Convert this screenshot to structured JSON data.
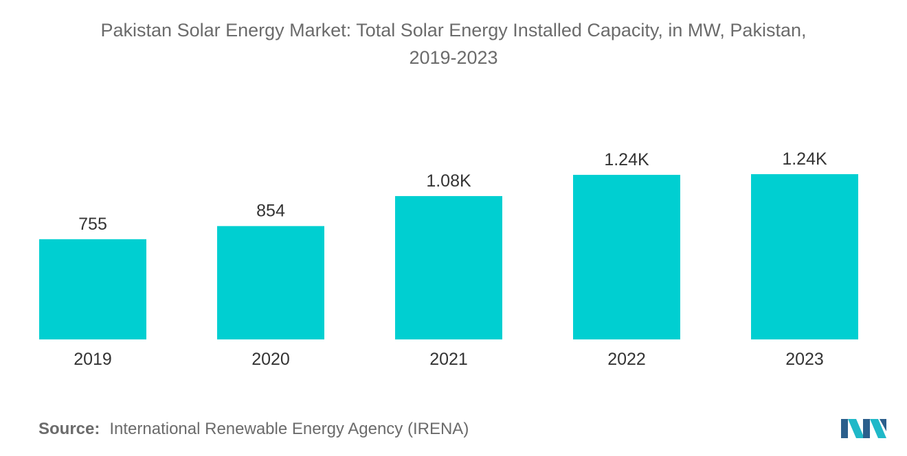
{
  "chart_data": {
    "type": "bar",
    "title_lines": [
      "Pakistan Solar Energy Market: Total Solar Energy Installed Capacity, in MW, Pakistan,",
      "2019-2023"
    ],
    "categories": [
      "2019",
      "2020",
      "2021",
      "2022",
      "2023"
    ],
    "values": [
      755,
      854,
      1080,
      1240,
      1245
    ],
    "data_labels": [
      "755",
      "854",
      "1.08K",
      "1.24K",
      "1.24K"
    ],
    "xlabel": "",
    "ylabel": "",
    "ylim": [
      0,
      1245
    ],
    "grid": false,
    "legend": "none",
    "bar_color": "#00cfd1"
  },
  "source": {
    "label": "Source:",
    "text": "International Renewable Energy Agency (IRENA)"
  },
  "colors": {
    "title": "#6b6b6b",
    "labels": "#333333",
    "logo_dark": "#2b5f8c",
    "logo_light": "#1fb8c8"
  },
  "logo": {
    "icon": "mordor-intelligence-logo-icon"
  }
}
